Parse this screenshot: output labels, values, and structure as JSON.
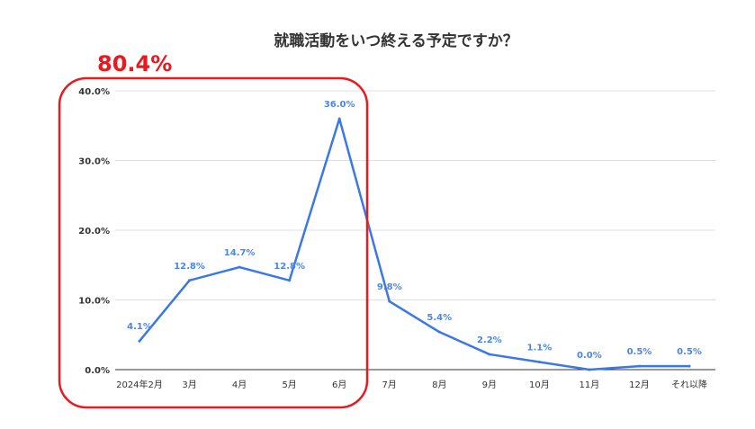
{
  "chart_data": {
    "type": "line",
    "title": "就職活動をいつ終える予定ですか？",
    "categories": [
      "2024年2月",
      "3月",
      "4月",
      "5月",
      "6月",
      "7月",
      "8月",
      "9月",
      "10月",
      "11月",
      "12月",
      "それ以降"
    ],
    "series": [
      {
        "values": [
          4.1,
          12.8,
          14.7,
          12.8,
          36.0,
          9.8,
          5.4,
          2.2,
          1.1,
          0.0,
          0.5,
          0.5
        ],
        "data_labels": [
          "4.1%",
          "12.8%",
          "14.7%",
          "12.8%",
          "36.0%",
          "9.8%",
          "5.4%",
          "2.2%",
          "1.1%",
          "0.0%",
          "0.5%",
          "0.5%"
        ]
      }
    ],
    "ylim": [
      0,
      40
    ],
    "y_ticks": [
      "0.0%",
      "10.0%",
      "20.0%",
      "30.0%",
      "40.0%"
    ],
    "y_tick_values": [
      0,
      10,
      20,
      30,
      40
    ],
    "grid": true,
    "line_color": "#3b78e7",
    "label_color": "#4a86e8",
    "annotation": {
      "text": "80.4%",
      "color": "#e8191f",
      "covers_categories": [
        "2024年2月",
        "3月",
        "4月",
        "5月",
        "6月"
      ]
    }
  }
}
